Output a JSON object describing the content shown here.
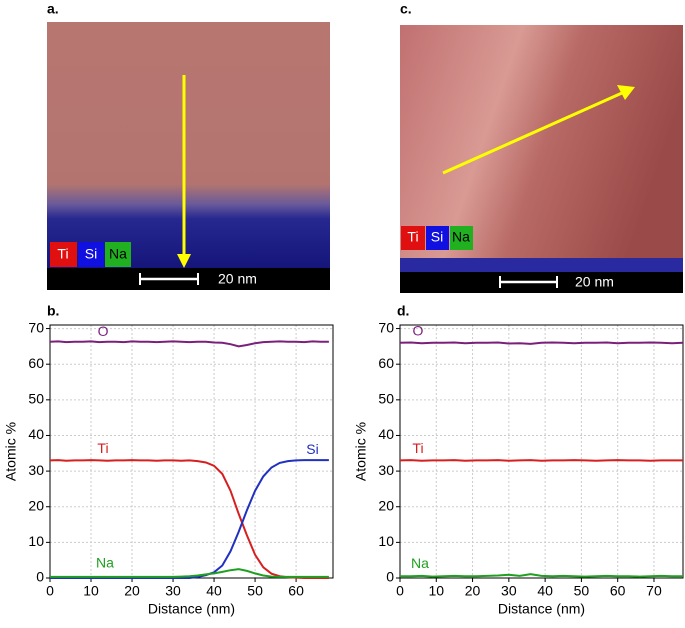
{
  "images": [
    {
      "label": "a.",
      "scale_bar": "20 nm",
      "legend": [
        "Ti",
        "Si",
        "Na"
      ]
    },
    {
      "label": "c.",
      "scale_bar": "20 nm",
      "legend": [
        "Ti",
        "Si",
        "Na"
      ]
    }
  ],
  "chart_data": [
    {
      "type": "line",
      "panel_label": "b.",
      "x_label": "Distance (nm)",
      "y_label": "Atomic %",
      "x": [
        0,
        2,
        4,
        6,
        8,
        10,
        12,
        14,
        16,
        18,
        20,
        22,
        24,
        26,
        28,
        30,
        32,
        34,
        36,
        38,
        40,
        42,
        44,
        46,
        48,
        50,
        52,
        54,
        56,
        58,
        60,
        62,
        64,
        66,
        68
      ],
      "xlim": [
        0,
        69
      ],
      "xticks": [
        0,
        10,
        20,
        30,
        40,
        50,
        60
      ],
      "ylim": [
        0,
        71
      ],
      "yticks": [
        0,
        10,
        20,
        30,
        40,
        50,
        60,
        70
      ],
      "grid": true,
      "series": [
        {
          "name": "O",
          "color": "#7b1f7b",
          "values": [
            66.3,
            66.4,
            66.2,
            66.3,
            66.3,
            66.4,
            66.2,
            66.3,
            66.3,
            66.2,
            66.4,
            66.3,
            66.3,
            66.2,
            66.3,
            66.4,
            66.3,
            66.2,
            66.3,
            66.3,
            66.1,
            66,
            65.6,
            65,
            65.4,
            65.9,
            66.2,
            66.3,
            66.4,
            66.3,
            66.3,
            66.2,
            66.4,
            66.3,
            66.3
          ]
        },
        {
          "name": "Ti",
          "color": "#d62020",
          "values": [
            33,
            33.1,
            32.9,
            33,
            33,
            33.1,
            33,
            32.9,
            33,
            33,
            33.1,
            33,
            33,
            32.9,
            33,
            33,
            32.9,
            33,
            32.8,
            32.4,
            31.5,
            29.2,
            24.5,
            18,
            12,
            6.5,
            3,
            1.2,
            0.5,
            0.2,
            0.1,
            0,
            0,
            0,
            0
          ]
        },
        {
          "name": "Si",
          "color": "#2030c0",
          "values": [
            0,
            0,
            0,
            0,
            0,
            0,
            0,
            0,
            0,
            0,
            0,
            0,
            0,
            0,
            0,
            0,
            0,
            0,
            0.3,
            0.8,
            1.6,
            3.5,
            7.5,
            13,
            19,
            24.5,
            28.5,
            31,
            32.3,
            32.8,
            33,
            33.1,
            33.1,
            33.1,
            33.1
          ]
        },
        {
          "name": "Na",
          "color": "#20a020",
          "values": [
            0.3,
            0.3,
            0.3,
            0.3,
            0.3,
            0.3,
            0.3,
            0.3,
            0.3,
            0.3,
            0.3,
            0.3,
            0.3,
            0.3,
            0.3,
            0.3,
            0.4,
            0.5,
            0.7,
            1,
            1.3,
            1.7,
            2.2,
            2.5,
            2,
            1.3,
            0.7,
            0.4,
            0.3,
            0.3,
            0.3,
            0.3,
            0.3,
            0.3,
            0.3
          ]
        }
      ]
    },
    {
      "type": "line",
      "panel_label": "d.",
      "x_label": "Distance (nm)",
      "y_label": "Atomic %",
      "x": [
        0,
        3,
        6,
        9,
        12,
        15,
        18,
        21,
        24,
        27,
        30,
        33,
        36,
        39,
        42,
        45,
        48,
        51,
        54,
        57,
        60,
        63,
        66,
        69,
        72,
        75,
        78
      ],
      "xlim": [
        0,
        78
      ],
      "xticks": [
        0,
        10,
        20,
        30,
        40,
        50,
        60,
        70
      ],
      "ylim": [
        0,
        71
      ],
      "yticks": [
        0,
        10,
        20,
        30,
        40,
        50,
        60,
        70
      ],
      "grid": true,
      "series": [
        {
          "name": "O",
          "color": "#7b1f7b",
          "values": [
            66,
            66.1,
            65.9,
            66,
            66,
            66.1,
            65.9,
            66,
            66,
            66.1,
            65.8,
            65.9,
            65.7,
            66,
            66.1,
            66,
            65.9,
            66,
            66,
            66.1,
            65.9,
            66,
            66,
            66.1,
            66,
            65.9,
            66
          ]
        },
        {
          "name": "Ti",
          "color": "#d62020",
          "values": [
            33,
            33.1,
            32.9,
            33,
            33,
            33.1,
            32.9,
            33,
            33,
            33.1,
            32.9,
            33,
            33.1,
            32.9,
            33,
            33,
            33.1,
            33,
            32.9,
            33,
            33.1,
            33,
            33,
            32.9,
            33,
            33,
            33
          ]
        },
        {
          "name": "Na",
          "color": "#20a020",
          "values": [
            0.5,
            0.5,
            0.6,
            0.4,
            0.5,
            0.6,
            0.5,
            0.5,
            0.6,
            0.7,
            0.9,
            0.6,
            1.1,
            0.6,
            0.5,
            0.6,
            0.5,
            0.4,
            0.5,
            0.6,
            0.5,
            0.5,
            0.4,
            0.5,
            0.6,
            0.5,
            0.5
          ]
        }
      ]
    }
  ]
}
